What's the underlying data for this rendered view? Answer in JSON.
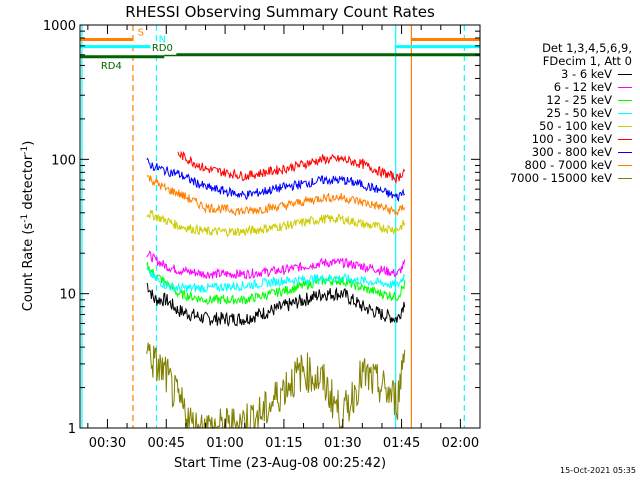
{
  "chart_data": {
    "type": "line",
    "title": "RHESSI Observing Summary Count Rates",
    "xlabel": "Start Time (23-Aug-08 00:25:42)",
    "ylabel": "Count Rate (s",
    "ylabel_sup1": "-1",
    "ylabel_mid": " detector",
    "ylabel_sup2": "-1",
    "ylabel_end": ")",
    "yscale": "log",
    "ylim": [
      1,
      1000
    ],
    "xlim_minutes": [
      23,
      125
    ],
    "x_ticks": [
      {
        "label": "00:30",
        "minute": 30
      },
      {
        "label": "00:45",
        "minute": 45
      },
      {
        "label": "01:00",
        "minute": 60
      },
      {
        "label": "01:15",
        "minute": 75
      },
      {
        "label": "01:30",
        "minute": 90
      },
      {
        "label": "01:45",
        "minute": 105
      },
      {
        "label": "02:00",
        "minute": 120
      }
    ],
    "y_ticks": [
      {
        "label": "1",
        "value": 1
      },
      {
        "label": "10",
        "value": 10
      },
      {
        "label": "100",
        "value": 100
      },
      {
        "label": "1000",
        "value": 1000
      }
    ],
    "legend_header": [
      "Det 1,3,4,5,6,9,",
      "FDecim 1, Att 0"
    ],
    "series": [
      {
        "name": "3 - 6 keV",
        "color": "#000000",
        "x": [
          40,
          42,
          45,
          48,
          55,
          65,
          75,
          85,
          90,
          95,
          100,
          104,
          106
        ],
        "y": [
          12,
          9,
          9,
          7.5,
          6.5,
          6.5,
          8,
          10,
          10,
          8,
          7,
          6.5,
          9
        ]
      },
      {
        "name": "6 - 12 keV",
        "color": "#ff00ff",
        "x": [
          40,
          42,
          45,
          48,
          55,
          65,
          75,
          85,
          90,
          95,
          100,
          104,
          106
        ],
        "y": [
          20,
          18,
          16,
          15,
          14,
          14,
          15,
          17,
          17,
          16,
          15,
          14,
          17
        ]
      },
      {
        "name": "12 - 25 keV",
        "color": "#00ff00",
        "x": [
          40,
          42,
          45,
          48,
          55,
          65,
          75,
          85,
          90,
          95,
          100,
          104,
          106
        ],
        "y": [
          16,
          14,
          12,
          10,
          9,
          9,
          10.5,
          12.5,
          12.5,
          11,
          10,
          9.5,
          12
        ]
      },
      {
        "name": "25 - 50 keV",
        "color": "#00ffff",
        "x": [
          40,
          42,
          45,
          48,
          55,
          65,
          75,
          85,
          90,
          95,
          100,
          104,
          106
        ],
        "y": [
          15,
          13,
          11.5,
          11,
          11,
          11.5,
          12.5,
          13,
          13,
          12.5,
          12,
          11.5,
          14
        ]
      },
      {
        "name": "50 - 100 keV",
        "color": "#cccc00",
        "x": [
          40,
          42,
          45,
          48,
          55,
          65,
          75,
          85,
          90,
          95,
          100,
          104,
          106
        ],
        "y": [
          40,
          38,
          35,
          32,
          29,
          29,
          32,
          36,
          36,
          33,
          31,
          30,
          34
        ]
      },
      {
        "name": "100 - 300 keV",
        "color": "#ff0000",
        "x": [
          48,
          55,
          65,
          75,
          85,
          90,
          95,
          100,
          104,
          106
        ],
        "y": [
          110,
          85,
          75,
          85,
          100,
          100,
          92,
          80,
          72,
          85
        ]
      },
      {
        "name": "300 - 800 keV",
        "color": "#0000ff",
        "x": [
          40,
          42,
          45,
          48,
          55,
          65,
          75,
          85,
          90,
          95,
          100,
          104,
          106
        ],
        "y": [
          95,
          88,
          82,
          78,
          62,
          54,
          62,
          70,
          70,
          65,
          58,
          52,
          60
        ]
      },
      {
        "name": "800 - 7000 keV",
        "color": "#ff8000",
        "x": [
          40,
          42,
          45,
          48,
          55,
          65,
          75,
          85,
          90,
          95,
          100,
          104,
          106
        ],
        "y": [
          75,
          68,
          60,
          56,
          44,
          41,
          45,
          52,
          52,
          48,
          44,
          40,
          46
        ]
      },
      {
        "name": "7000 - 15000 keV",
        "color": "#808000",
        "x": [
          40,
          42,
          45,
          47,
          50,
          52,
          60,
          70,
          75,
          80,
          85,
          90,
          95,
          100,
          104,
          106
        ],
        "y": [
          4,
          3,
          2.5,
          1.8,
          1.3,
          1,
          1,
          1.3,
          2,
          2.7,
          2.2,
          1.2,
          2.5,
          2,
          1.6,
          4.5
        ]
      }
    ],
    "vlines": [
      {
        "minute": 23.5,
        "color": "#00ffff",
        "style": "solid"
      },
      {
        "minute": 36.5,
        "color": "#ff8000",
        "style": "dashed"
      },
      {
        "minute": 42.5,
        "color": "#00ffff",
        "style": "dashed"
      },
      {
        "minute": 103.5,
        "color": "#00ffff",
        "style": "solid"
      },
      {
        "minute": 107.5,
        "color": "#ff8000",
        "style": "solid"
      },
      {
        "minute": 121,
        "color": "#00ffff",
        "style": "dashed"
      }
    ],
    "flag_bars": [
      {
        "label": "S",
        "color": "#ff8000",
        "y_value": 780,
        "segments": [
          [
            23,
            36.5
          ],
          [
            107.5,
            125
          ]
        ],
        "label_minute": 38.5
      },
      {
        "label": "N",
        "color": "#00ffff",
        "y_value": 690,
        "segments": [
          [
            23,
            42.5
          ],
          [
            103.5,
            125
          ]
        ],
        "label_minute": 44
      },
      {
        "label": "RD0",
        "color": "#006400",
        "y_value": 600,
        "segments": [
          [
            44.5,
            125
          ]
        ],
        "label_minute": 44
      },
      {
        "label": "RD4",
        "color": "#006400",
        "y_value": 580,
        "segments": [
          [
            23,
            44.5
          ]
        ],
        "label_minute": 31
      }
    ]
  },
  "timestamp": "15-Oct-2021 05:35"
}
